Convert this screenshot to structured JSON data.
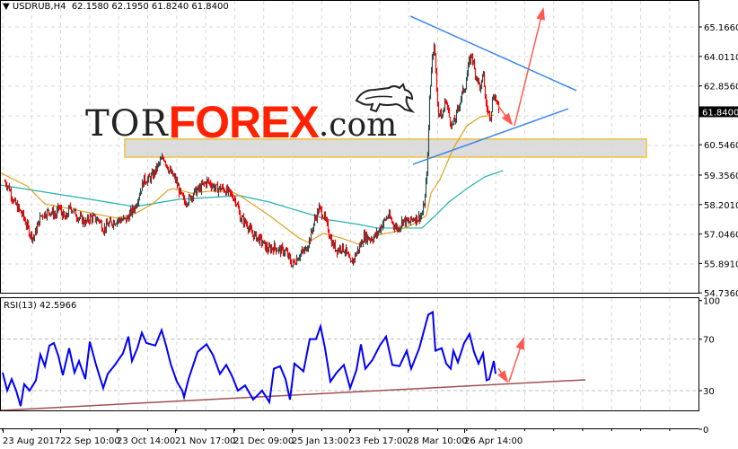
{
  "header": {
    "menu_icon": "triangle-down-icon",
    "symbol": "USDRUB,H4",
    "ohlc": "62.1580 62.1950 61.8240 61.8400"
  },
  "rsi_header": "RSI(13) 42.5966",
  "logo": {
    "part1": "TOR",
    "part2": "FOREX",
    "part3": ".com",
    "icon": "bull-icon"
  },
  "colors": {
    "bull_candle": "#2f4f4f",
    "bear_candle": "#ff0000",
    "ma_fast": "#e0a020",
    "ma_slow": "#20b2aa",
    "rsi": "#0000ff",
    "trendline_blue": "#3a86f0",
    "rsi_trendline": "#a05050",
    "arrows": "#ff5a50",
    "zone_fill": "#d8d8d8",
    "zone_border": "#f0c040",
    "logo_red": "#ff2200"
  },
  "chart_data": [
    {
      "type": "candlestick",
      "title": "USDRUB,H4",
      "ylim": [
        54.736,
        65.166
      ],
      "price_ticks": [
        "65.1660",
        "64.0110",
        "62.8560",
        "60.5460",
        "59.3560",
        "58.2010",
        "57.0460",
        "55.8910",
        "54.7360"
      ],
      "current_price": "61.8400",
      "x_ticks": [
        "23 Aug 2017",
        "22 Sep 10:00",
        "23 Oct 14:00",
        "21 Nov 17:00",
        "21 Dec 09:00",
        "25 Jan 13:00",
        "23 Feb 17:00",
        "28 Mar 10:00",
        "26 Apr 14:00"
      ],
      "grid": true,
      "price_path_bar_price": [
        [
          5,
          59.11
        ],
        [
          10,
          58.83
        ],
        [
          15,
          58.3
        ],
        [
          25,
          57.77
        ],
        [
          33,
          57.07
        ],
        [
          37,
          56.89
        ],
        [
          45,
          57.77
        ],
        [
          55,
          57.95
        ],
        [
          62,
          57.77
        ],
        [
          65,
          58.12
        ],
        [
          72,
          57.6
        ],
        [
          78,
          58.12
        ],
        [
          85,
          57.77
        ],
        [
          95,
          57.49
        ],
        [
          100,
          57.7
        ],
        [
          110,
          57.6
        ],
        [
          115,
          57.24
        ],
        [
          120,
          57.42
        ],
        [
          130,
          57.6
        ],
        [
          140,
          57.6
        ],
        [
          150,
          58.12
        ],
        [
          155,
          58.65
        ],
        [
          160,
          59.18
        ],
        [
          165,
          59.18
        ],
        [
          170,
          59.36
        ],
        [
          178,
          59.88
        ],
        [
          182,
          60.06
        ],
        [
          188,
          59.53
        ],
        [
          195,
          59.18
        ],
        [
          200,
          58.65
        ],
        [
          205,
          58.3
        ],
        [
          210,
          58.41
        ],
        [
          215,
          58.65
        ],
        [
          222,
          58.83
        ],
        [
          230,
          59.11
        ],
        [
          235,
          59.0
        ],
        [
          240,
          58.83
        ],
        [
          248,
          58.83
        ],
        [
          255,
          58.65
        ],
        [
          260,
          58.48
        ],
        [
          263,
          58.3
        ],
        [
          267,
          57.7
        ],
        [
          275,
          57.42
        ],
        [
          280,
          57.07
        ],
        [
          290,
          56.79
        ],
        [
          298,
          56.43
        ],
        [
          305,
          56.54
        ],
        [
          310,
          56.43
        ],
        [
          318,
          56.36
        ],
        [
          325,
          55.83
        ],
        [
          332,
          56.19
        ],
        [
          340,
          56.43
        ],
        [
          345,
          56.89
        ],
        [
          350,
          57.6
        ],
        [
          355,
          58.05
        ],
        [
          360,
          57.77
        ],
        [
          365,
          57.24
        ],
        [
          370,
          56.64
        ],
        [
          375,
          56.43
        ],
        [
          380,
          56.54
        ],
        [
          385,
          56.36
        ],
        [
          390,
          55.83
        ],
        [
          395,
          56.19
        ],
        [
          400,
          56.54
        ],
        [
          405,
          56.96
        ],
        [
          410,
          56.89
        ],
        [
          415,
          56.89
        ],
        [
          420,
          57.07
        ],
        [
          425,
          57.42
        ],
        [
          432,
          57.77
        ],
        [
          438,
          57.42
        ],
        [
          443,
          57.24
        ],
        [
          448,
          57.6
        ],
        [
          455,
          57.49
        ],
        [
          460,
          57.67
        ],
        [
          465,
          57.67
        ],
        [
          470,
          57.84
        ],
        [
          473,
          58.47
        ],
        [
          476,
          60.06
        ],
        [
          478,
          62.35
        ],
        [
          480,
          63.58
        ],
        [
          483,
          64.64
        ],
        [
          486,
          62.7
        ],
        [
          488,
          61.82
        ],
        [
          492,
          61.64
        ],
        [
          496,
          62.35
        ],
        [
          500,
          61.64
        ],
        [
          503,
          61.29
        ],
        [
          506,
          61.47
        ],
        [
          510,
          61.99
        ],
        [
          514,
          62.53
        ],
        [
          518,
          62.88
        ],
        [
          522,
          63.76
        ],
        [
          525,
          64.11
        ],
        [
          528,
          63.47
        ],
        [
          532,
          63.05
        ],
        [
          535,
          62.7
        ],
        [
          538,
          63.4
        ],
        [
          540,
          62.35
        ],
        [
          543,
          61.82
        ],
        [
          546,
          61.71
        ],
        [
          549,
          62.53
        ],
        [
          552,
          62.35
        ],
        [
          555,
          61.84
        ]
      ],
      "ma_fast": [
        [
          0,
          59.46
        ],
        [
          30,
          58.93
        ],
        [
          50,
          58.23
        ],
        [
          100,
          57.88
        ],
        [
          130,
          57.67
        ],
        [
          150,
          57.84
        ],
        [
          170,
          58.23
        ],
        [
          187,
          58.76
        ],
        [
          193,
          58.83
        ],
        [
          213,
          58.65
        ],
        [
          233,
          58.72
        ],
        [
          257,
          58.72
        ],
        [
          267,
          58.55
        ],
        [
          300,
          57.77
        ],
        [
          333,
          56.89
        ],
        [
          343,
          56.72
        ],
        [
          360,
          57.07
        ],
        [
          380,
          56.89
        ],
        [
          400,
          56.64
        ],
        [
          420,
          57.0
        ],
        [
          440,
          57.14
        ],
        [
          460,
          57.42
        ],
        [
          475,
          57.77
        ],
        [
          480,
          58.65
        ],
        [
          490,
          59.18
        ],
        [
          505,
          60.41
        ],
        [
          520,
          61.29
        ],
        [
          535,
          61.64
        ],
        [
          550,
          61.71
        ]
      ],
      "ma_slow": [
        [
          0,
          58.97
        ],
        [
          100,
          58.41
        ],
        [
          150,
          58.12
        ],
        [
          200,
          58.41
        ],
        [
          233,
          58.48
        ],
        [
          267,
          58.55
        ],
        [
          300,
          58.3
        ],
        [
          333,
          57.95
        ],
        [
          367,
          57.6
        ],
        [
          400,
          57.42
        ],
        [
          420,
          57.28
        ],
        [
          470,
          57.28
        ],
        [
          485,
          57.77
        ],
        [
          500,
          58.3
        ],
        [
          520,
          58.83
        ],
        [
          540,
          59.29
        ],
        [
          560,
          59.53
        ]
      ],
      "annotations": {
        "upper_trendline": [
          [
            457,
            65.59
          ],
          [
            642,
            62.67
          ]
        ],
        "lower_trendline": [
          [
            460,
            59.78
          ],
          [
            633,
            61.96
          ]
        ],
        "support_zone": {
          "from_bar": 139,
          "to_bar": 720,
          "price_top": 60.77,
          "price_bottom": 60.06
        },
        "arrow_down": [
          [
            555,
            62.07
          ],
          [
            570,
            61.36
          ]
        ],
        "arrow_up": [
          [
            573,
            61.29
          ],
          [
            605,
            65.87
          ]
        ]
      }
    },
    {
      "type": "line",
      "title": "RSI(13) 42.5966",
      "ylim": [
        0,
        100
      ],
      "y_ticks": [
        "100",
        "70",
        "30",
        "0"
      ],
      "levels": [
        70,
        30
      ],
      "rsi_bar_value": [
        [
          3,
          44
        ],
        [
          8,
          30
        ],
        [
          13,
          39
        ],
        [
          18,
          30
        ],
        [
          23,
          18
        ],
        [
          27,
          35
        ],
        [
          33,
          30
        ],
        [
          40,
          38
        ],
        [
          45,
          58
        ],
        [
          50,
          49
        ],
        [
          55,
          65
        ],
        [
          60,
          67
        ],
        [
          65,
          57
        ],
        [
          70,
          42
        ],
        [
          77,
          63
        ],
        [
          83,
          44
        ],
        [
          88,
          53
        ],
        [
          95,
          39
        ],
        [
          100,
          68
        ],
        [
          107,
          50
        ],
        [
          115,
          32
        ],
        [
          120,
          43
        ],
        [
          128,
          50
        ],
        [
          137,
          59
        ],
        [
          143,
          72
        ],
        [
          147,
          53
        ],
        [
          153,
          63
        ],
        [
          158,
          75
        ],
        [
          163,
          67
        ],
        [
          173,
          65
        ],
        [
          180,
          77
        ],
        [
          185,
          65
        ],
        [
          190,
          51
        ],
        [
          197,
          37
        ],
        [
          203,
          30
        ],
        [
          205,
          25
        ],
        [
          210,
          39
        ],
        [
          220,
          60
        ],
        [
          230,
          66
        ],
        [
          237,
          58
        ],
        [
          245,
          43
        ],
        [
          252,
          50
        ],
        [
          258,
          42
        ],
        [
          265,
          30
        ],
        [
          273,
          34
        ],
        [
          282,
          23
        ],
        [
          292,
          30
        ],
        [
          300,
          21
        ],
        [
          305,
          47
        ],
        [
          312,
          49
        ],
        [
          318,
          39
        ],
        [
          323,
          23
        ],
        [
          328,
          51
        ],
        [
          338,
          45
        ],
        [
          345,
          70
        ],
        [
          352,
          70
        ],
        [
          357,
          80
        ],
        [
          362,
          63
        ],
        [
          368,
          37
        ],
        [
          375,
          44
        ],
        [
          383,
          50
        ],
        [
          390,
          32
        ],
        [
          397,
          46
        ],
        [
          402,
          66
        ],
        [
          407,
          47
        ],
        [
          415,
          54
        ],
        [
          423,
          65
        ],
        [
          430,
          72
        ],
        [
          437,
          50
        ],
        [
          445,
          49
        ],
        [
          453,
          61
        ],
        [
          458,
          47
        ],
        [
          467,
          63
        ],
        [
          477,
          89
        ],
        [
          482,
          91
        ],
        [
          485,
          61
        ],
        [
          492,
          63
        ],
        [
          497,
          51
        ],
        [
          502,
          47
        ],
        [
          505,
          61
        ],
        [
          510,
          52
        ],
        [
          517,
          67
        ],
        [
          523,
          74
        ],
        [
          528,
          60
        ],
        [
          533,
          51
        ],
        [
          538,
          59
        ],
        [
          542,
          38
        ],
        [
          545,
          39
        ],
        [
          550,
          53
        ],
        [
          552,
          43
        ]
      ],
      "annotations": {
        "trendline": [
          [
            0,
            14.6
          ],
          [
            652,
            38.4
          ]
        ],
        "arrow_down": [
          [
            555,
            47.4
          ],
          [
            565,
            37
          ]
        ],
        "arrow_up": [
          [
            567,
            37
          ],
          [
            583,
            70.5
          ]
        ]
      }
    }
  ]
}
